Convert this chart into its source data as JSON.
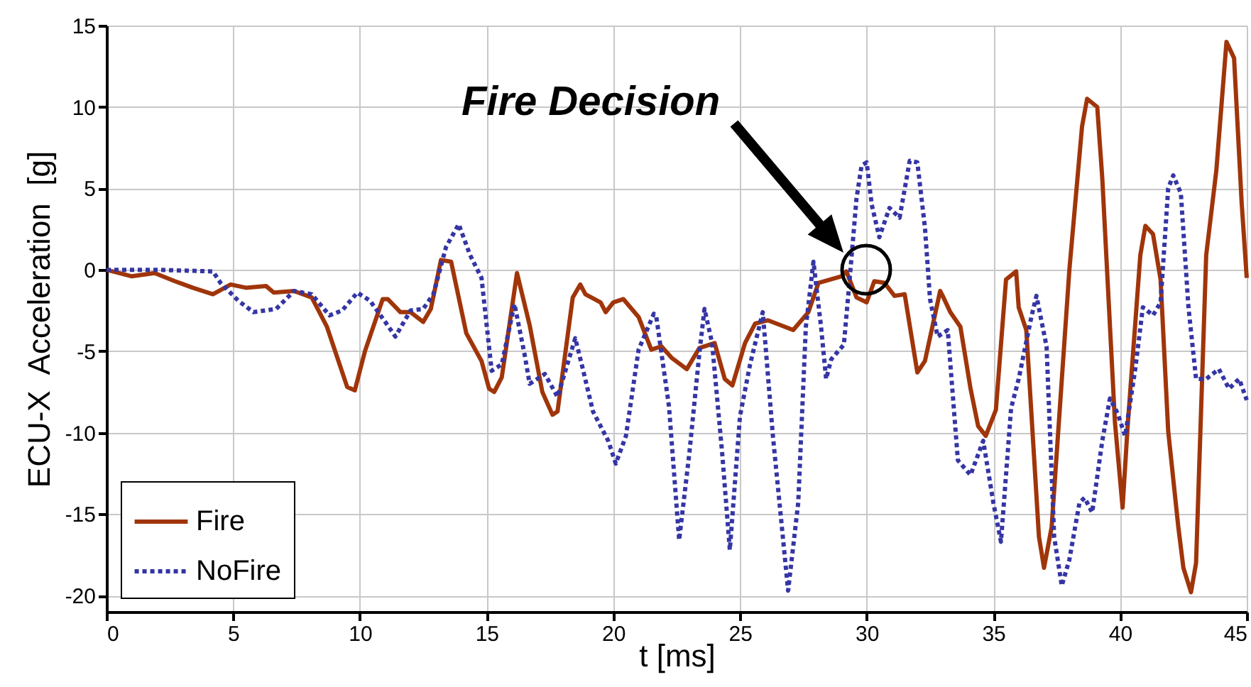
{
  "chart_data": {
    "type": "line",
    "xlabel": "t [ms]",
    "ylabel": "ECU-X  Acceleration  [g]",
    "xlim": [
      0,
      45
    ],
    "ylim": [
      -21,
      15
    ],
    "xticks": [
      0,
      5,
      10,
      15,
      20,
      25,
      30,
      35,
      40,
      45
    ],
    "yticks": [
      15,
      10,
      5,
      0,
      -5,
      -10,
      -15,
      -20
    ],
    "grid": true,
    "legend": "bottom left",
    "annotations": [
      "Fire Decision"
    ],
    "series": [
      {
        "name": "Fire",
        "color": "#a0350a",
        "line_style": "solid",
        "x": [
          0,
          1,
          1.9,
          2.7,
          3.4,
          4.2,
          4.9,
          5.5,
          6.3,
          6.6,
          7.4,
          8.1,
          8.7,
          9.5,
          9.8,
          10.2,
          10.9,
          11.1,
          11.6,
          12,
          12.5,
          12.8,
          13.2,
          13.6,
          14.2,
          14.8,
          15.1,
          15.3,
          15.6,
          16.2,
          16.7,
          17.2,
          17.6,
          17.8,
          18.4,
          18.7,
          18.9,
          19.5,
          19.7,
          20,
          20.4,
          21,
          21.5,
          21.9,
          22.3,
          22.9,
          23.4,
          24,
          24.4,
          24.7,
          25.2,
          25.6,
          26.1,
          27.1,
          27.7,
          28.1,
          29,
          29.2,
          29.6,
          30,
          30.3,
          30.7,
          31.1,
          31.5,
          32,
          32.3,
          32.9,
          33,
          33.3,
          33.7,
          34.1,
          34.4,
          34.7,
          35.1,
          35.5,
          35.9,
          36,
          36.3,
          36.8,
          37,
          37.3,
          38,
          38.5,
          38.7,
          39.1,
          39.3,
          39.8,
          40.1,
          40.3,
          40.8,
          41,
          41.3,
          41.6,
          41.9,
          42.3,
          42.5,
          42.8,
          43,
          43.4,
          43.8,
          44.2,
          44.5,
          44.8,
          45
        ],
        "values": [
          0,
          -0.4,
          -0.2,
          -0.7,
          -1.1,
          -1.5,
          -0.9,
          -1.1,
          -1,
          -1.4,
          -1.3,
          -1.7,
          -3.5,
          -7.2,
          -7.4,
          -5,
          -1.8,
          -1.8,
          -2.6,
          -2.6,
          -3.2,
          -2.4,
          0.6,
          0.5,
          -3.9,
          -5.6,
          -7.3,
          -7.5,
          -6.6,
          -0.2,
          -3.4,
          -7.5,
          -8.9,
          -8.7,
          -1.7,
          -0.9,
          -1.5,
          -2,
          -2.6,
          -2,
          -1.8,
          -2.9,
          -4.9,
          -4.7,
          -5.4,
          -6.1,
          -4.8,
          -4.5,
          -6.7,
          -7.1,
          -4.5,
          -3.3,
          -3.1,
          -3.7,
          -2.6,
          -0.8,
          -0.4,
          -0.1,
          -1.7,
          -2,
          -0.7,
          -0.8,
          -1.6,
          -1.5,
          -6.3,
          -5.6,
          -1.3,
          -1.6,
          -2.6,
          -3.5,
          -7.3,
          -9.6,
          -10.2,
          -8.6,
          -0.6,
          -0.1,
          -2.3,
          -3.7,
          -16.4,
          -18.3,
          -15.8,
          0,
          8.8,
          10.5,
          10,
          5.6,
          -9.4,
          -14.6,
          -9.6,
          0.9,
          2.7,
          2.2,
          -0.6,
          -9.9,
          -15.8,
          -18.3,
          -19.8,
          -18,
          0.9,
          6.1,
          14,
          13,
          4.1,
          -0.5
        ]
      },
      {
        "name": "NoFire",
        "color": "#3535a5",
        "line_style": "dotted",
        "x": [
          0,
          2,
          4.2,
          4.5,
          5.2,
          5.8,
          6.7,
          7.4,
          8.1,
          8.8,
          9.3,
          9.9,
          10.4,
          11,
          11.4,
          12,
          12.5,
          12.9,
          13.4,
          13.9,
          14.35,
          14.8,
          15.2,
          15.6,
          16.1,
          16.5,
          16.7,
          17.3,
          17.8,
          18.5,
          18.8,
          19.2,
          19.8,
          20.1,
          20.5,
          21,
          21.6,
          21.7,
          22.2,
          22.6,
          23,
          23.4,
          23.6,
          23.9,
          24.3,
          24.6,
          25,
          25.4,
          25.9,
          26.3,
          26.9,
          27.3,
          27.6,
          27.9,
          28.2,
          28.4,
          28.6,
          29.1,
          29.3,
          29.6,
          29.8,
          30,
          30.2,
          30.5,
          30.9,
          31.3,
          31.7,
          32,
          32.3,
          32.5,
          32.8,
          33.2,
          33.6,
          34.1,
          34.6,
          35,
          35.3,
          35.7,
          36,
          36.5,
          36.7,
          37.1,
          37.4,
          37.7,
          38,
          38.4,
          38.6,
          38.9,
          39.3,
          39.6,
          39.9,
          40.2,
          40.6,
          40.9,
          41.3,
          41.6,
          41.9,
          42.1,
          42.4,
          42.7,
          43,
          43.4,
          43.9,
          44.3,
          44.7,
          45
        ],
        "values": [
          0,
          0,
          -0.1,
          -0.8,
          -1.9,
          -2.6,
          -2.4,
          -1.3,
          -1.5,
          -2.8,
          -2.5,
          -1.4,
          -1.9,
          -3.2,
          -4.1,
          -2.5,
          -2.4,
          -1.5,
          1.4,
          2.8,
          0.9,
          -0.5,
          -6.2,
          -5.8,
          -2.1,
          -5.2,
          -7,
          -6.4,
          -7.8,
          -4.2,
          -6.1,
          -8.7,
          -10.5,
          -11.9,
          -10.2,
          -4.9,
          -2.7,
          -2.9,
          -8.4,
          -16.6,
          -11.3,
          -5.1,
          -2.4,
          -4.5,
          -11.3,
          -17.2,
          -9,
          -5.8,
          -2.6,
          -10.2,
          -19.7,
          -14.3,
          -3.5,
          0.5,
          -3.5,
          -6.7,
          -5.5,
          -4.6,
          -1.1,
          4.4,
          6.4,
          6.6,
          4,
          2,
          3.8,
          3.2,
          6.7,
          6.6,
          2.6,
          -1.8,
          -4.1,
          -3.7,
          -11.7,
          -12.6,
          -10.5,
          -14.3,
          -16.7,
          -8.5,
          -6.7,
          -2.9,
          -1.6,
          -4.7,
          -16.4,
          -19.4,
          -17.8,
          -14.3,
          -14,
          -14.9,
          -10.5,
          -7.9,
          -8.8,
          -10.2,
          -6.1,
          -2.3,
          -2.8,
          -2,
          5,
          5.8,
          4.7,
          -2.3,
          -6.7,
          -6.7,
          -6.1,
          -7.3,
          -6.7,
          -8
        ]
      }
    ]
  }
}
